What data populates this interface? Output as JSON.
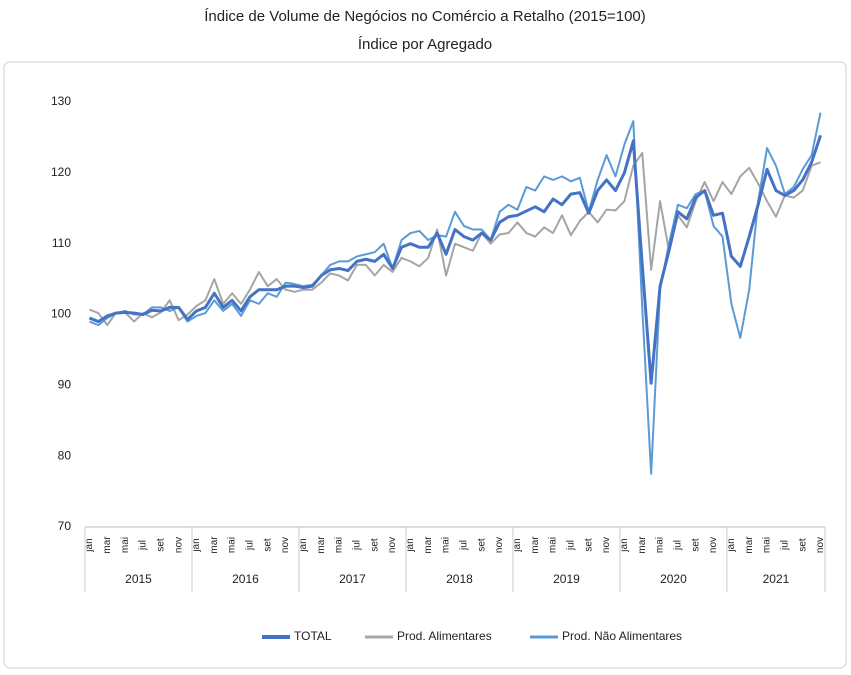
{
  "chart_data": {
    "type": "line",
    "title": "Índice de Volume de Negócios no Comércio a Retalho (2015=100)",
    "subtitle": "Índice por Agregado",
    "categories": [
      "jan",
      null,
      "mar",
      null,
      "mai",
      null,
      "jul",
      null,
      "set",
      null,
      "nov",
      null,
      "jan",
      null,
      "mar",
      null,
      "mai",
      null,
      "jul",
      null,
      "set",
      null,
      "nov",
      null,
      "jan",
      null,
      "mar",
      null,
      "mai",
      null,
      "jul",
      null,
      "set",
      null,
      "nov",
      null,
      "jan",
      null,
      "mar",
      null,
      "mai",
      null,
      "jul",
      null,
      "set",
      null,
      "nov",
      null,
      "jan",
      null,
      "mar",
      null,
      "mai",
      null,
      "jul",
      null,
      "set",
      null,
      "nov",
      null,
      "jan",
      null,
      "mar",
      null,
      "mai",
      null,
      "jul",
      null,
      "set",
      null,
      "nov",
      null,
      "jan",
      null,
      "mar",
      null,
      "mai",
      null,
      "jul",
      null,
      "set",
      null,
      "nov"
    ],
    "years": [
      "2015",
      "2016",
      "2017",
      "2018",
      "2019",
      "2020",
      "2021"
    ],
    "ylim": [
      70,
      130
    ],
    "yticks": [
      70,
      80,
      90,
      100,
      110,
      120,
      130
    ],
    "grid": false,
    "legend": "bottom",
    "series": [
      {
        "name": "TOTAL",
        "color": "#4472c4",
        "width": 3,
        "values": [
          99.5,
          99.0,
          99.8,
          100.2,
          100.3,
          100.2,
          100.0,
          100.6,
          100.5,
          101.0,
          101.0,
          99.3,
          100.5,
          101.0,
          103.0,
          101.0,
          102.0,
          100.5,
          102.5,
          103.5,
          103.5,
          103.5,
          104.0,
          104.0,
          103.8,
          104.0,
          105.5,
          106.3,
          106.5,
          106.2,
          107.5,
          107.8,
          107.5,
          108.5,
          106.5,
          109.5,
          110.0,
          109.5,
          109.5,
          111.5,
          108.5,
          112.0,
          111.0,
          110.5,
          111.5,
          110.5,
          113.0,
          113.8,
          114.0,
          114.6,
          115.2,
          114.5,
          116.3,
          115.5,
          117.0,
          117.2,
          114.3,
          117.5,
          119.0,
          117.5,
          120.0,
          124.5,
          107.0,
          90.3,
          104.0,
          109.0,
          114.5,
          113.5,
          116.5,
          117.5,
          114.0,
          114.3,
          108.2,
          106.8,
          111.0,
          115.5,
          120.5,
          117.5,
          116.8,
          117.5,
          119.0,
          121.5,
          125.3
        ]
      },
      {
        "name": "Prod. Alimentares",
        "color": "#a5a5a5",
        "width": 2,
        "values": [
          100.7,
          100.2,
          98.5,
          100.3,
          100.3,
          99.0,
          100.2,
          99.6,
          100.3,
          102.0,
          99.2,
          100.0,
          101.2,
          102.0,
          105.0,
          101.5,
          103.0,
          101.5,
          103.5,
          106.0,
          104.0,
          105.0,
          103.5,
          103.2,
          103.5,
          103.5,
          104.5,
          105.8,
          105.5,
          104.8,
          107.0,
          107.0,
          105.5,
          107.0,
          106.0,
          108.0,
          107.5,
          106.8,
          108.0,
          112.0,
          105.5,
          110.0,
          109.5,
          109.0,
          111.5,
          110.0,
          111.3,
          111.5,
          113.0,
          111.5,
          111.0,
          112.3,
          111.5,
          114.0,
          111.2,
          113.2,
          114.5,
          113.0,
          114.8,
          114.7,
          116.0,
          121.0,
          122.8,
          106.3,
          116.0,
          109.0,
          114.0,
          112.3,
          116.0,
          118.7,
          116.0,
          118.7,
          117.0,
          119.5,
          120.7,
          118.5,
          116.0,
          113.8,
          116.8,
          116.5,
          117.5,
          121.0,
          121.5
        ]
      },
      {
        "name": "Prod. Não Alimentares",
        "color": "#5b9bd5",
        "width": 2,
        "values": [
          99.0,
          98.5,
          99.5,
          100.2,
          100.5,
          100.0,
          100.0,
          101.0,
          101.0,
          100.5,
          101.0,
          99.0,
          99.8,
          100.2,
          102.0,
          100.5,
          101.5,
          99.8,
          102.0,
          101.5,
          103.0,
          102.5,
          104.5,
          104.3,
          104.0,
          104.2,
          105.5,
          107.0,
          107.5,
          107.5,
          108.2,
          108.5,
          108.8,
          110.0,
          106.5,
          110.5,
          111.5,
          111.8,
          110.5,
          111.2,
          111.0,
          114.5,
          112.5,
          112.0,
          112.0,
          110.5,
          114.5,
          115.5,
          114.8,
          118.0,
          117.5,
          119.5,
          119.0,
          119.5,
          118.8,
          119.3,
          114.5,
          119.0,
          122.5,
          119.5,
          124.0,
          127.3,
          101.0,
          77.5,
          103.5,
          110.0,
          115.5,
          115.0,
          117.0,
          117.5,
          112.5,
          111.0,
          101.5,
          96.7,
          103.5,
          116.0,
          123.5,
          121.0,
          117.0,
          118.0,
          120.5,
          122.5,
          128.5
        ]
      }
    ]
  }
}
